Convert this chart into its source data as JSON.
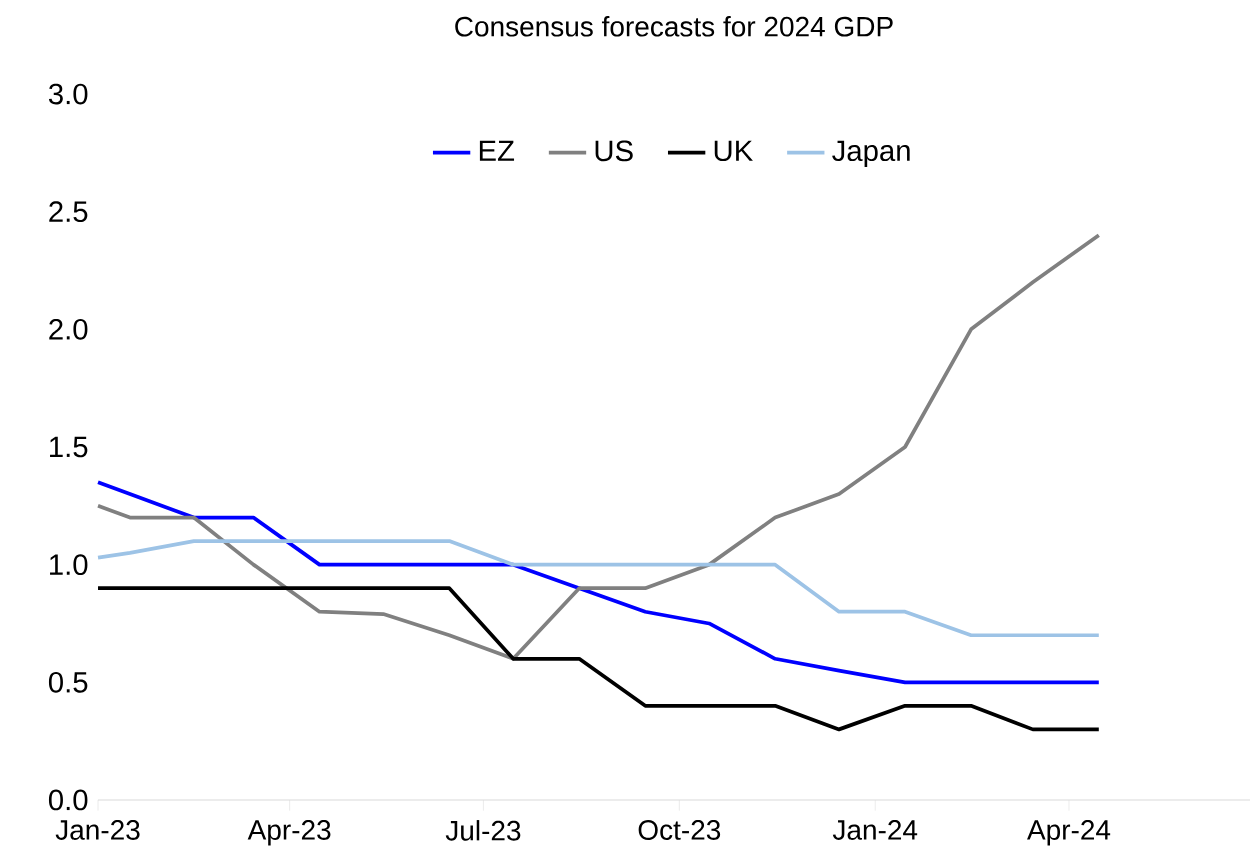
{
  "chart_data": {
    "type": "line",
    "title": "Consensus forecasts for 2024 GDP",
    "x": [
      "2023-01-01",
      "2023-01-16",
      "2023-02-15",
      "2023-03-15",
      "2023-04-15",
      "2023-05-15",
      "2023-06-15",
      "2023-07-15",
      "2023-08-15",
      "2023-09-15",
      "2023-10-15",
      "2023-11-15",
      "2023-12-15",
      "2024-01-15",
      "2024-02-15",
      "2024-03-15",
      "2024-04-15"
    ],
    "series": [
      {
        "name": "EZ",
        "color": "#0000ff",
        "values": [
          1.35,
          1.3,
          1.2,
          1.2,
          1.0,
          1.0,
          1.0,
          1.0,
          0.9,
          0.8,
          0.75,
          0.6,
          0.55,
          0.5,
          0.5,
          0.5,
          0.5
        ]
      },
      {
        "name": "US",
        "color": "#808080",
        "values": [
          1.25,
          1.2,
          1.2,
          1.0,
          0.8,
          0.79,
          0.7,
          0.6,
          0.9,
          0.9,
          1.0,
          1.2,
          1.3,
          1.5,
          2.0,
          2.2,
          2.4
        ]
      },
      {
        "name": "UK",
        "color": "#000000",
        "values": [
          0.9,
          0.9,
          0.9,
          0.9,
          0.9,
          0.9,
          0.9,
          0.6,
          0.6,
          0.4,
          0.4,
          0.4,
          0.3,
          0.4,
          0.4,
          0.3,
          0.3
        ]
      },
      {
        "name": "Japan",
        "color": "#9dc3e6",
        "values": [
          1.03,
          1.05,
          1.1,
          1.1,
          1.1,
          1.1,
          1.1,
          1.0,
          1.0,
          1.0,
          1.0,
          1.0,
          0.8,
          0.8,
          0.7,
          0.7,
          0.7
        ]
      }
    ],
    "xlim": [
      "2023-01-01",
      "2024-06-25"
    ],
    "xticks": [
      {
        "value": "2023-01",
        "label": "Jan-23"
      },
      {
        "value": "2023-04",
        "label": "Apr-23"
      },
      {
        "value": "2023-07",
        "label": "Jul-23"
      },
      {
        "value": "2023-10",
        "label": "Oct-23"
      },
      {
        "value": "2024-01",
        "label": "Jan-24"
      },
      {
        "value": "2024-04",
        "label": "Apr-24"
      }
    ],
    "ylim": [
      0,
      3.0
    ],
    "yticks": [
      {
        "value": 0,
        "label": "0.0"
      },
      0.5,
      {
        "value": 1,
        "label": "1.0"
      },
      1.5,
      {
        "value": 2,
        "label": "2.0"
      },
      2.5,
      {
        "value": 3,
        "label": "3.0"
      }
    ],
    "legend": "top",
    "marker": "none",
    "line_style": "solid"
  }
}
